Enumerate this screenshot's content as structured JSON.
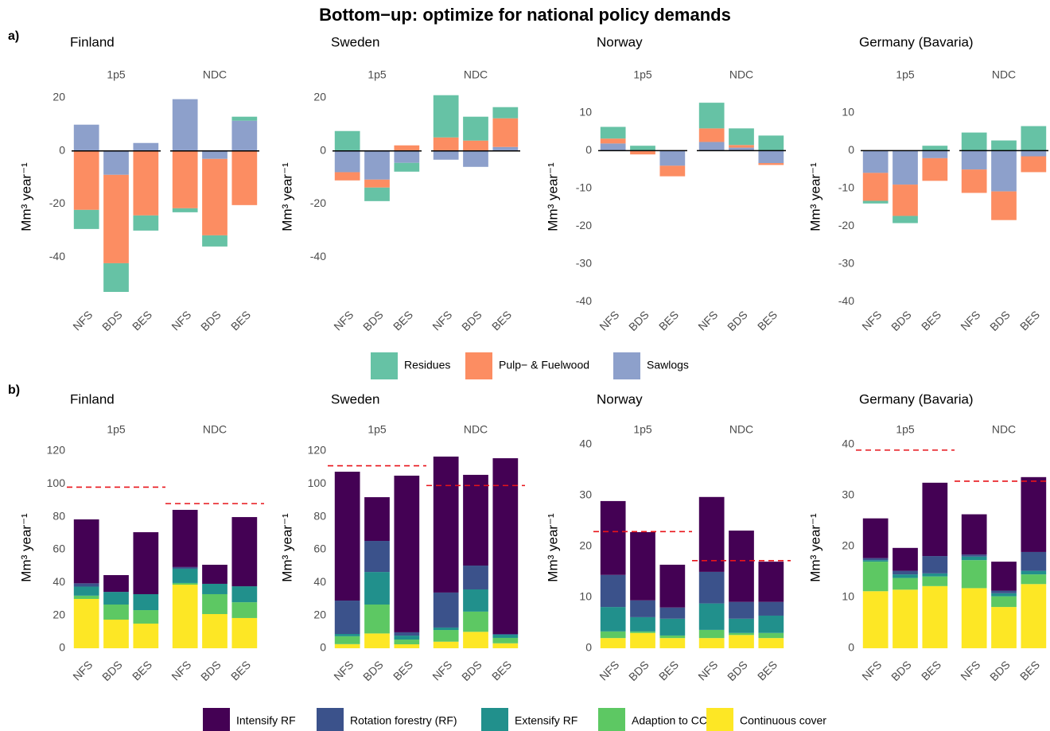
{
  "title": "Bottom−up: optimize for national policy demands",
  "panel_tags": [
    "a)",
    "b)"
  ],
  "chart_data": [
    {
      "type": "bar",
      "stacked": true,
      "title": "Finland",
      "ylabel": "Mm³ year⁻¹",
      "facets": [
        "1p5",
        "NDC"
      ],
      "categories": [
        "NFS",
        "BDS",
        "BES"
      ],
      "ylim": [
        -57.6,
        23
      ],
      "yticks": [
        -40,
        -20,
        0,
        20
      ],
      "zero_line": true,
      "series": [
        {
          "name": "Residues",
          "color": "#66c2a5",
          "values": [
            [
              -7.2,
              -10.8,
              -5.7
            ],
            [
              -1.5,
              -4.2,
              1.5
            ]
          ]
        },
        {
          "name": "Pulp− & Fuelwood",
          "color": "#fc8d62",
          "values": [
            [
              -22.2,
              -33.3,
              -24.3
            ],
            [
              -21.6,
              -28.8,
              -20.4
            ]
          ]
        },
        {
          "name": "Sawlogs",
          "color": "#8da0cb",
          "values": [
            [
              9.9,
              -9,
              3
            ],
            [
              19.5,
              -3,
              11.4
            ]
          ]
        }
      ]
    },
    {
      "type": "bar",
      "stacked": true,
      "title": "Sweden",
      "ylabel": "Mm³ year⁻¹",
      "facets": [
        "1p5",
        "NDC"
      ],
      "categories": [
        "NFS",
        "BDS",
        "BES"
      ],
      "ylim": [
        -57.6,
        23
      ],
      "yticks": [
        -40,
        -20,
        0,
        20
      ],
      "zero_line": true,
      "series": [
        {
          "name": "Residues",
          "color": "#66c2a5",
          "values": [
            [
              7.5,
              -5.1,
              -3.3
            ],
            [
              15.9,
              9,
              4.2
            ]
          ]
        },
        {
          "name": "Pulp− & Fuelwood",
          "color": "#fc8d62",
          "values": [
            [
              -3.1,
              -3,
              2.1
            ],
            [
              5.1,
              3.9,
              10.8
            ]
          ]
        },
        {
          "name": "Sawlogs",
          "color": "#8da0cb",
          "values": [
            [
              -8,
              -10.8,
              -4.5
            ],
            [
              -3.3,
              -6,
              1.5
            ]
          ]
        }
      ]
    },
    {
      "type": "bar",
      "stacked": true,
      "title": "Norway",
      "ylabel": "Mm³ year⁻¹",
      "facets": [
        "1p5",
        "NDC"
      ],
      "categories": [
        "NFS",
        "BDS",
        "BES"
      ],
      "ylim": [
        -40.6,
        16.1
      ],
      "yticks": [
        -40,
        -30,
        -20,
        -10,
        0,
        10
      ],
      "zero_line": true,
      "series": [
        {
          "name": "Residues",
          "color": "#66c2a5",
          "values": [
            [
              3.1,
              1.3,
              0
            ],
            [
              6.8,
              4.4,
              4
            ]
          ]
        },
        {
          "name": "Pulp− & Fuelwood",
          "color": "#fc8d62",
          "values": [
            [
              1.3,
              -1,
              -2.8
            ],
            [
              3.6,
              0.7,
              -0.5
            ]
          ]
        },
        {
          "name": "Sawlogs",
          "color": "#8da0cb",
          "values": [
            [
              1.9,
              0,
              -4
            ],
            [
              2.3,
              0.8,
              -3.3
            ]
          ]
        }
      ]
    },
    {
      "type": "bar",
      "stacked": true,
      "title": "Germany (Bavaria)",
      "ylabel": "Mm³ year⁻¹",
      "facets": [
        "1p5",
        "NDC"
      ],
      "categories": [
        "NFS",
        "BDS",
        "BES"
      ],
      "ylim": [
        -40.6,
        16.1
      ],
      "yticks": [
        -40,
        -30,
        -20,
        -10,
        0,
        10
      ],
      "zero_line": true,
      "series": [
        {
          "name": "Residues",
          "color": "#66c2a5",
          "values": [
            [
              -0.7,
              -1.9,
              1.3
            ],
            [
              4.8,
              2.7,
              6.5
            ]
          ]
        },
        {
          "name": "Pulp− & Fuelwood",
          "color": "#fc8d62",
          "values": [
            [
              -7.4,
              -8.3,
              -6
            ],
            [
              -6.2,
              -7.6,
              -4.2
            ]
          ]
        },
        {
          "name": "Sawlogs",
          "color": "#8da0cb",
          "values": [
            [
              -5.9,
              -9,
              -2
            ],
            [
              -5,
              -10.8,
              -1.5
            ]
          ]
        }
      ]
    },
    {
      "type": "bar",
      "stacked": true,
      "title": "Finland",
      "ylabel": "Mm³ year⁻¹",
      "facets": [
        "1p5",
        "NDC"
      ],
      "categories": [
        "NFS",
        "BDS",
        "BES"
      ],
      "ylim": [
        -3.4,
        125.8
      ],
      "yticks": [
        0,
        20,
        40,
        60,
        80,
        100,
        120
      ],
      "reference_lines": [
        98,
        88
      ],
      "reference_color": "#e8141a",
      "series": [
        {
          "name": "Intensify RF",
          "color": "#440154",
          "values": [
            [
              38.9,
              10.2,
              37.7
            ],
            [
              34.8,
              11.6,
              42.1
            ]
          ]
        },
        {
          "name": "Rotation forestry (RF)",
          "color": "#3b528b",
          "values": [
            [
              2,
              0,
              0
            ],
            [
              1,
              0,
              0
            ]
          ]
        },
        {
          "name": "Extensify RF",
          "color": "#21908c",
          "values": [
            [
              5.5,
              7.7,
              9.7
            ],
            [
              8.7,
              6.3,
              9.7
            ]
          ]
        },
        {
          "name": "Adaption to CC",
          "color": "#5dc863",
          "values": [
            [
              2,
              9.2,
              8.2
            ],
            [
              1,
              12.1,
              9.6
            ]
          ]
        },
        {
          "name": "Continuous cover",
          "color": "#fde725",
          "values": [
            [
              30,
              17.4,
              15
            ],
            [
              38.7,
              20.8,
              18.4
            ]
          ]
        }
      ]
    },
    {
      "type": "bar",
      "stacked": true,
      "title": "Sweden",
      "ylabel": "Mm³ year⁻¹",
      "facets": [
        "1p5",
        "NDC"
      ],
      "categories": [
        "NFS",
        "BDS",
        "BES"
      ],
      "ylim": [
        -3.4,
        125.8
      ],
      "yticks": [
        0,
        20,
        40,
        60,
        80,
        100,
        120
      ],
      "reference_lines": [
        111,
        99
      ],
      "reference_color": "#e8141a",
      "series": [
        {
          "name": "Intensify RF",
          "color": "#440154",
          "values": [
            [
              78.4,
              26.6,
              95.3
            ],
            [
              82.7,
              55.2,
              106.9
            ]
          ]
        },
        {
          "name": "Rotation forestry (RF)",
          "color": "#3b528b",
          "values": [
            [
              20.3,
              18.9,
              2
            ],
            [
              21.3,
              14.5,
              0.5
            ]
          ]
        },
        {
          "name": "Extensify RF",
          "color": "#21908c",
          "values": [
            [
              1.4,
              19.8,
              2.4
            ],
            [
              1.5,
              13.5,
              1.9
            ]
          ]
        },
        {
          "name": "Adaption to CC",
          "color": "#5dc863",
          "values": [
            [
              4.8,
              17.6,
              2.9
            ],
            [
              7.1,
              12.3,
              3.3
            ]
          ]
        },
        {
          "name": "Continuous cover",
          "color": "#fde725",
          "values": [
            [
              2.5,
              9,
              2.4
            ],
            [
              4,
              10,
              3
            ]
          ]
        }
      ]
    },
    {
      "type": "bar",
      "stacked": true,
      "title": "Norway",
      "ylabel": "Mm³ year⁻¹",
      "facets": [
        "1p5",
        "NDC"
      ],
      "categories": [
        "NFS",
        "BDS",
        "BES"
      ],
      "ylim": [
        -1.1,
        40.6
      ],
      "yticks": [
        0,
        10,
        20,
        30,
        40
      ],
      "reference_lines": [
        22.9,
        17.2
      ],
      "reference_color": "#e8141a",
      "series": [
        {
          "name": "Intensify RF",
          "color": "#440154",
          "values": [
            [
              14.5,
              13.4,
              8.4
            ],
            [
              14.7,
              14,
              7.9
            ]
          ]
        },
        {
          "name": "Rotation forestry (RF)",
          "color": "#3b528b",
          "values": [
            [
              6.3,
              3.3,
              2.2
            ],
            [
              6.2,
              3.3,
              2.7
            ]
          ]
        },
        {
          "name": "Extensify RF",
          "color": "#21908c",
          "values": [
            [
              4.8,
              2.8,
              3.3
            ],
            [
              5.2,
              2.8,
              3.4
            ]
          ]
        },
        {
          "name": "Adaption to CC",
          "color": "#5dc863",
          "values": [
            [
              1.3,
              0.3,
              0.5
            ],
            [
              1.6,
              0.4,
              1
            ]
          ]
        },
        {
          "name": "Continuous cover",
          "color": "#fde725",
          "values": [
            [
              2,
              3,
              2
            ],
            [
              2,
              2.6,
              2
            ]
          ]
        }
      ]
    },
    {
      "type": "bar",
      "stacked": true,
      "title": "Germany (Bavaria)",
      "ylabel": "Mm³ year⁻¹",
      "facets": [
        "1p5",
        "NDC"
      ],
      "categories": [
        "NFS",
        "BDS",
        "BES"
      ],
      "ylim": [
        -1.1,
        40.6
      ],
      "yticks": [
        0,
        10,
        20,
        30,
        40
      ],
      "reference_lines": [
        38.9,
        32.8
      ],
      "reference_color": "#e8141a",
      "series": [
        {
          "name": "Intensify RF",
          "color": "#440154",
          "values": [
            [
              7.8,
              4.5,
              14.4
            ],
            [
              7.9,
              5.7,
              14.7
            ]
          ]
        },
        {
          "name": "Rotation forestry (RF)",
          "color": "#3b528b",
          "values": [
            [
              0.4,
              0.7,
              3.4
            ],
            [
              0.4,
              0.5,
              3.7
            ]
          ]
        },
        {
          "name": "Extensify RF",
          "color": "#21908c",
          "values": [
            [
              0.3,
              0.7,
              0.6
            ],
            [
              0.7,
              0.6,
              0.7
            ]
          ]
        },
        {
          "name": "Adaption to CC",
          "color": "#5dc863",
          "values": [
            [
              5.8,
              2.3,
              1.9
            ],
            [
              5.5,
              2.1,
              1.9
            ]
          ]
        },
        {
          "name": "Continuous cover",
          "color": "#fde725",
          "values": [
            [
              11.2,
              11.5,
              12.2
            ],
            [
              11.8,
              8.1,
              12.6
            ]
          ]
        }
      ]
    }
  ]
}
